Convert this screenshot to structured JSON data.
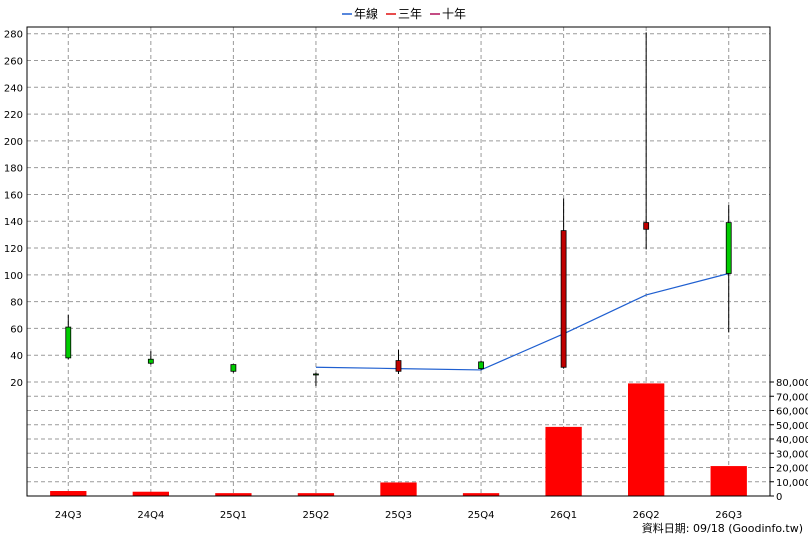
{
  "legend": [
    {
      "name": "年線",
      "color": "#1f5fd0"
    },
    {
      "name": "三年",
      "color": "#e01010"
    },
    {
      "name": "十年",
      "color": "#b0105a"
    }
  ],
  "footer": "資料日期: 09/18  (Goodinfo.tw)",
  "chart_data": [
    {
      "type": "candlestick",
      "categories": [
        "24Q3",
        "24Q4",
        "25Q1",
        "25Q2",
        "25Q3",
        "25Q4",
        "26Q1",
        "26Q2",
        "26Q3"
      ],
      "ylim": [
        20,
        285
      ],
      "yticks": [
        20,
        40,
        60,
        80,
        100,
        120,
        140,
        160,
        180,
        200,
        220,
        240,
        260,
        280
      ],
      "grid": true,
      "up_color": "#00cc00",
      "down_color": "#c00000",
      "candles": [
        {
          "open": 38,
          "close": 61,
          "high": 70,
          "low": 37
        },
        {
          "open": 34,
          "close": 37,
          "high": 43,
          "low": 33
        },
        {
          "open": 28,
          "close": 33,
          "high": 33,
          "low": 27
        },
        {
          "open": 26,
          "close": 26,
          "high": 27,
          "low": 17
        },
        {
          "open": 36,
          "close": 28,
          "high": 44,
          "low": 26
        },
        {
          "open": 30,
          "close": 35,
          "high": 36,
          "low": 29
        },
        {
          "open": 133,
          "close": 31,
          "high": 157,
          "low": 30
        },
        {
          "open": 139,
          "close": 134,
          "high": 281,
          "low": 119
        },
        {
          "open": 101,
          "close": 139,
          "high": 152,
          "low": 57
        }
      ],
      "series": [
        {
          "name": "年線",
          "values": [
            null,
            null,
            null,
            31,
            30,
            29,
            56,
            85,
            101
          ]
        }
      ]
    },
    {
      "type": "bar",
      "categories": [
        "24Q3",
        "24Q4",
        "25Q1",
        "25Q2",
        "25Q3",
        "25Q4",
        "26Q1",
        "26Q2",
        "26Q3"
      ],
      "values": [
        3500,
        3000,
        2000,
        2000,
        9500,
        2000,
        48500,
        79000,
        21000
      ],
      "ylim": [
        0,
        80000
      ],
      "yticks": [
        0,
        10000,
        20000,
        30000,
        40000,
        50000,
        60000,
        70000,
        80000
      ],
      "tick_labels": [
        "0",
        "10,000",
        "20,000",
        "30,000",
        "40,000",
        "50,000",
        "60,000",
        "70,000",
        "80,000"
      ],
      "color": "#ff0000"
    }
  ]
}
